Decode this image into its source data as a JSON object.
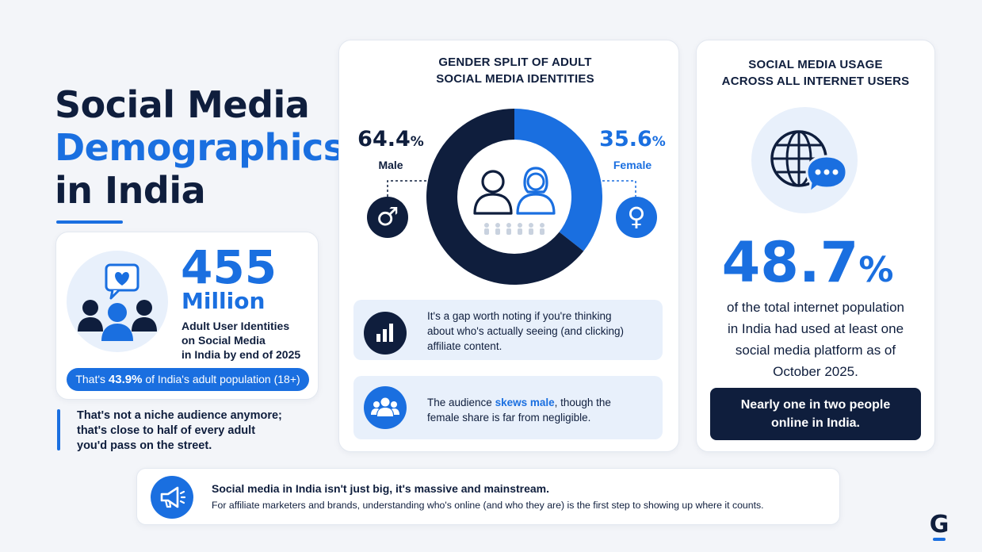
{
  "title": {
    "line1": "Social Media",
    "line2": "Demographics",
    "line3": "in India"
  },
  "users": {
    "number": "455",
    "unit": "Million",
    "desc_line1": "Adult User Identities",
    "desc_line2": "on Social Media",
    "desc_line3": "in India by end of 2025",
    "pill_prefix": "That's ",
    "pill_value": "43.9%",
    "pill_suffix": " of India's adult population (18+)"
  },
  "quote": {
    "line1": "That's not a niche audience anymore;",
    "line2": "that's close to half of every adult",
    "line3": "you'd pass on the street."
  },
  "gender": {
    "heading_line1": "GENDER SPLIT OF ADULT",
    "heading_line2": "SOCIAL MEDIA IDENTITIES",
    "male_pct": "64.4",
    "male_label": "Male",
    "female_pct": "35.6",
    "female_label": "Female",
    "pct_sign": "%",
    "male_share": 0.644,
    "female_share": 0.356,
    "male_symbol": "♂",
    "female_symbol": "♀",
    "note1_line1": "It's a gap worth noting if you're thinking",
    "note1_line2": "about who's actually seeing (and clicking)",
    "note1_line3": "affiliate content.",
    "note2_prefix": "The audience ",
    "note2_highlight": "skews male",
    "note2_suffix": ", though the",
    "note2_line2": "female share is far from negligible."
  },
  "usage": {
    "heading_line1": "SOCIAL MEDIA USAGE",
    "heading_line2": "ACROSS ALL INTERNET USERS",
    "value": "48.7",
    "pct_sign": "%",
    "desc_line1": "of the total internet population",
    "desc_line2": "in India had used at least one",
    "desc_line3": "social media platform as of",
    "desc_line4": "October 2025.",
    "banner_line1": "Nearly one in two people",
    "banner_line2": "online in India."
  },
  "footer": {
    "headline": "Social media in India isn't just big, it's massive and mainstream.",
    "subline": "For affiliate marketers and brands, understanding who's online (and who they are) is the first step to showing up where it counts."
  },
  "logo": {
    "letter": "G"
  },
  "colors": {
    "navy": "#0f1e3d",
    "blue": "#1a6fe0",
    "light_blue_bg": "#e8f0fb"
  },
  "icons": [
    "heart-chat-icon",
    "people-group-icon",
    "male-symbol-icon",
    "female-symbol-icon",
    "person-outline-icon",
    "bar-chart-icon",
    "audience-icon",
    "globe-icon",
    "chat-bubble-icon",
    "megaphone-icon"
  ]
}
